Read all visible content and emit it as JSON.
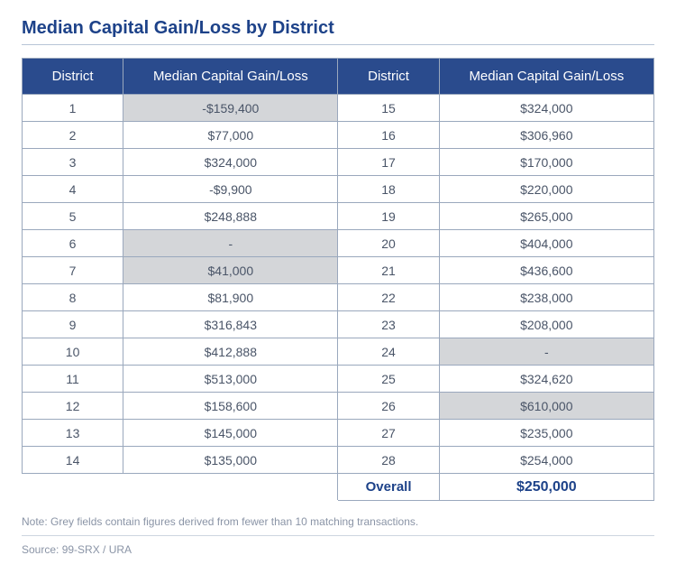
{
  "title": "Median Capital Gain/Loss by District",
  "columns": {
    "district": "District",
    "value": "Median Capital Gain/Loss"
  },
  "left": [
    {
      "district": "1",
      "value": "-$159,400",
      "shaded": true
    },
    {
      "district": "2",
      "value": "$77,000",
      "shaded": false
    },
    {
      "district": "3",
      "value": "$324,000",
      "shaded": false
    },
    {
      "district": "4",
      "value": "-$9,900",
      "shaded": false
    },
    {
      "district": "5",
      "value": "$248,888",
      "shaded": false
    },
    {
      "district": "6",
      "value": "-",
      "shaded": true
    },
    {
      "district": "7",
      "value": "$41,000",
      "shaded": true
    },
    {
      "district": "8",
      "value": "$81,900",
      "shaded": false
    },
    {
      "district": "9",
      "value": "$316,843",
      "shaded": false
    },
    {
      "district": "10",
      "value": "$412,888",
      "shaded": false
    },
    {
      "district": "11",
      "value": "$513,000",
      "shaded": false
    },
    {
      "district": "12",
      "value": "$158,600",
      "shaded": false
    },
    {
      "district": "13",
      "value": "$145,000",
      "shaded": false
    },
    {
      "district": "14",
      "value": "$135,000",
      "shaded": false
    }
  ],
  "right": [
    {
      "district": "15",
      "value": "$324,000",
      "shaded": false
    },
    {
      "district": "16",
      "value": "$306,960",
      "shaded": false
    },
    {
      "district": "17",
      "value": "$170,000",
      "shaded": false
    },
    {
      "district": "18",
      "value": "$220,000",
      "shaded": false
    },
    {
      "district": "19",
      "value": "$265,000",
      "shaded": false
    },
    {
      "district": "20",
      "value": "$404,000",
      "shaded": false
    },
    {
      "district": "21",
      "value": "$436,600",
      "shaded": false
    },
    {
      "district": "22",
      "value": "$238,000",
      "shaded": false
    },
    {
      "district": "23",
      "value": "$208,000",
      "shaded": false
    },
    {
      "district": "24",
      "value": "-",
      "shaded": true
    },
    {
      "district": "25",
      "value": "$324,620",
      "shaded": false
    },
    {
      "district": "26",
      "value": "$610,000",
      "shaded": true
    },
    {
      "district": "27",
      "value": "$235,000",
      "shaded": false
    },
    {
      "district": "28",
      "value": "$254,000",
      "shaded": false
    }
  ],
  "overall": {
    "label": "Overall",
    "value": "$250,000"
  },
  "note": "Note: Grey fields contain figures derived from fewer than 10 matching transactions.",
  "source": "Source: 99-SRX / URA",
  "style": {
    "header_bg": "#2a4b8d",
    "header_text": "#ffffff",
    "title_color": "#1d4289",
    "border_color": "#9aa8bd",
    "shaded_bg": "#d4d6d9",
    "cell_text": "#4a5568",
    "note_color": "#8a94a6",
    "overall_color": "#1d4289"
  }
}
